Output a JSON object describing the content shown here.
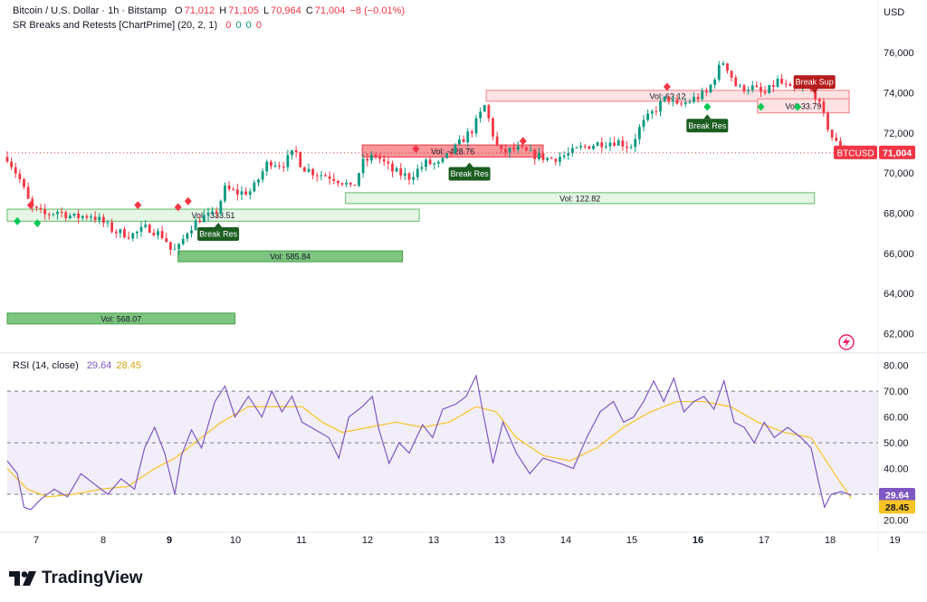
{
  "legend": {
    "title": "Bitcoin / U.S. Dollar · 1h · Bitstamp",
    "o_label": "O",
    "o": "71,012",
    "h_label": "H",
    "h": "71,105",
    "l_label": "L",
    "l": "70,964",
    "c_label": "C",
    "c": "71,004",
    "change": "−8 (−0.01%)",
    "indicator": "SR Breaks and Retests [ChartPrime] (20, 2, 1)",
    "indicator_values": [
      "0",
      "0",
      "0",
      "0"
    ]
  },
  "currency": "USD",
  "rsi_legend": {
    "label": "RSI (14, close)",
    "rsi": "29.64",
    "ma": "28.45"
  },
  "price_tag": {
    "symbol": "BTCUSD",
    "price": "71,004"
  },
  "brand": "TradingView",
  "colors": {
    "up": "#089981",
    "down": "#f23645",
    "rsi": "#7e57c2",
    "rsi_ma": "#f7c325",
    "support": "#4caf50",
    "resistance": "#f23645"
  },
  "chart_data": [
    {
      "type": "candlestick",
      "title": "Bitcoin / U.S. Dollar · 1h · Bitstamp",
      "x_ticks": [
        "7",
        "8",
        "9",
        "10",
        "11",
        "12",
        "13",
        "13",
        "14",
        "15",
        "16",
        "17",
        "18",
        "19"
      ],
      "x_tick_bold": [
        "9",
        "16"
      ],
      "x_range": [
        6.6,
        19.6
      ],
      "ylim": [
        61300,
        77000
      ],
      "y_ticks": [
        "62,000",
        "64,000",
        "66,000",
        "68,000",
        "70,000",
        "72,000",
        "74,000",
        "76,000"
      ],
      "close_path": [
        [
          6.6,
          70800
        ],
        [
          6.8,
          69600
        ],
        [
          6.95,
          68300
        ],
        [
          7.15,
          67900
        ],
        [
          7.35,
          68100
        ],
        [
          7.6,
          67800
        ],
        [
          7.85,
          67900
        ],
        [
          8.0,
          67600
        ],
        [
          8.2,
          67100
        ],
        [
          8.45,
          66900
        ],
        [
          8.7,
          67300
        ],
        [
          8.95,
          66800
        ],
        [
          9.05,
          66100
        ],
        [
          9.15,
          66200
        ],
        [
          9.3,
          67200
        ],
        [
          9.5,
          67800
        ],
        [
          9.7,
          67900
        ],
        [
          9.85,
          69200
        ],
        [
          10.05,
          69000
        ],
        [
          10.25,
          69100
        ],
        [
          10.5,
          70600
        ],
        [
          10.7,
          70400
        ],
        [
          10.9,
          71100
        ],
        [
          11.0,
          70300
        ],
        [
          11.2,
          70000
        ],
        [
          11.45,
          69800
        ],
        [
          11.65,
          69500
        ],
        [
          11.75,
          69100
        ],
        [
          11.9,
          70500
        ],
        [
          12.1,
          70900
        ],
        [
          12.35,
          70100
        ],
        [
          12.6,
          69800
        ],
        [
          12.85,
          70500
        ],
        [
          13.05,
          70400
        ],
        [
          13.3,
          71300
        ],
        [
          13.55,
          72200
        ],
        [
          13.75,
          73500
        ],
        [
          13.8,
          72400
        ],
        [
          13.95,
          71000
        ],
        [
          14.2,
          71200
        ],
        [
          14.45,
          70900
        ],
        [
          14.7,
          70700
        ],
        [
          14.95,
          70900
        ],
        [
          15.2,
          71300
        ],
        [
          15.45,
          71500
        ],
        [
          15.7,
          71600
        ],
        [
          15.9,
          71300
        ],
        [
          16.05,
          72300
        ],
        [
          16.2,
          72900
        ],
        [
          16.45,
          73800
        ],
        [
          16.6,
          73300
        ],
        [
          16.85,
          73700
        ],
        [
          17.05,
          74000
        ],
        [
          17.2,
          75100
        ],
        [
          17.3,
          75600
        ],
        [
          17.5,
          74200
        ],
        [
          17.7,
          74300
        ],
        [
          17.9,
          73900
        ],
        [
          18.1,
          74600
        ],
        [
          18.3,
          74100
        ],
        [
          18.5,
          74300
        ],
        [
          18.65,
          74000
        ],
        [
          18.8,
          72700
        ],
        [
          18.95,
          71500
        ],
        [
          19.05,
          71400
        ],
        [
          19.1,
          71004
        ]
      ],
      "indicator_boxes": [
        {
          "kind": "support",
          "x": [
            6.6,
            10.0
          ],
          "y": [
            62600,
            62900
          ],
          "label": "Vol: 568.07"
        },
        {
          "kind": "support",
          "x": [
            9.15,
            12.5
          ],
          "y": [
            65700,
            66000
          ],
          "label": "Vol: 585.84"
        },
        {
          "kind": "support-light",
          "x": [
            6.6,
            12.75
          ],
          "y": [
            67600,
            68200
          ],
          "label": "Vol: -333.51"
        },
        {
          "kind": "support-light",
          "x": [
            11.65,
            18.65
          ],
          "y": [
            68500,
            69000
          ],
          "label": "Vol: 122.82"
        },
        {
          "kind": "resistance",
          "x": [
            11.9,
            14.6
          ],
          "y": [
            70800,
            71400
          ],
          "label": "Vol: -428.76"
        },
        {
          "kind": "resistance-light",
          "x": [
            13.75,
            19.9
          ],
          "y": [
            73700,
            74000
          ],
          "label": "Vol: 63.12"
        },
        {
          "kind": "resistance-light",
          "x": [
            17.8,
            19.9
          ],
          "y": [
            73000,
            73700
          ],
          "label": "Vol: 33.79"
        }
      ],
      "signal_labels": [
        {
          "text": "Break Res",
          "x": 9.75,
          "y": 67300
        },
        {
          "text": "Break Res",
          "x": 13.5,
          "y": 70300
        },
        {
          "text": "Break Res",
          "x": 17.05,
          "y": 72700
        },
        {
          "text": "Break Sup",
          "x": 18.65,
          "y": 74200
        }
      ],
      "retest_markers_up": [
        [
          6.95,
          68400
        ],
        [
          8.55,
          68400
        ],
        [
          9.15,
          68300
        ],
        [
          9.3,
          68600
        ],
        [
          12.7,
          71200
        ],
        [
          14.3,
          71600
        ],
        [
          16.45,
          74300
        ],
        [
          18.65,
          74600
        ]
      ],
      "retest_markers_down": [
        [
          6.75,
          67600
        ],
        [
          7.05,
          67500
        ],
        [
          13.5,
          70300
        ],
        [
          17.05,
          73300
        ],
        [
          17.85,
          73300
        ],
        [
          18.4,
          73300
        ]
      ]
    },
    {
      "type": "line",
      "title": "RSI (14, close)",
      "ylim": [
        17,
        82
      ],
      "y_ticks": [
        "20.00",
        "30.00",
        "40.00",
        "50.00",
        "60.00",
        "70.00",
        "80.00"
      ],
      "band": [
        30,
        70
      ],
      "midline": 50,
      "series": [
        {
          "name": "RSI",
          "points": [
            [
              6.6,
              43
            ],
            [
              6.75,
              38
            ],
            [
              6.85,
              25
            ],
            [
              6.95,
              24
            ],
            [
              7.1,
              28
            ],
            [
              7.3,
              32
            ],
            [
              7.5,
              29
            ],
            [
              7.7,
              38
            ],
            [
              7.9,
              34
            ],
            [
              8.1,
              30
            ],
            [
              8.3,
              36
            ],
            [
              8.5,
              32
            ],
            [
              8.65,
              48
            ],
            [
              8.8,
              56
            ],
            [
              8.95,
              46
            ],
            [
              9.1,
              30
            ],
            [
              9.2,
              45
            ],
            [
              9.35,
              55
            ],
            [
              9.5,
              48
            ],
            [
              9.7,
              66
            ],
            [
              9.85,
              72
            ],
            [
              10.0,
              60
            ],
            [
              10.2,
              68
            ],
            [
              10.4,
              60
            ],
            [
              10.55,
              70
            ],
            [
              10.7,
              62
            ],
            [
              10.85,
              68
            ],
            [
              11.0,
              58
            ],
            [
              11.2,
              55
            ],
            [
              11.4,
              52
            ],
            [
              11.55,
              44
            ],
            [
              11.7,
              60
            ],
            [
              11.9,
              64
            ],
            [
              12.05,
              68
            ],
            [
              12.15,
              55
            ],
            [
              12.3,
              42
            ],
            [
              12.45,
              50
            ],
            [
              12.6,
              46
            ],
            [
              12.8,
              57
            ],
            [
              12.95,
              52
            ],
            [
              13.1,
              63
            ],
            [
              13.3,
              65
            ],
            [
              13.45,
              68
            ],
            [
              13.6,
              76
            ],
            [
              13.7,
              62
            ],
            [
              13.85,
              42
            ],
            [
              14.0,
              58
            ],
            [
              14.2,
              46
            ],
            [
              14.4,
              38
            ],
            [
              14.6,
              44
            ],
            [
              14.85,
              42
            ],
            [
              15.05,
              40
            ],
            [
              15.25,
              52
            ],
            [
              15.45,
              62
            ],
            [
              15.65,
              66
            ],
            [
              15.8,
              58
            ],
            [
              15.95,
              60
            ],
            [
              16.1,
              66
            ],
            [
              16.25,
              74
            ],
            [
              16.4,
              66
            ],
            [
              16.55,
              75
            ],
            [
              16.7,
              62
            ],
            [
              16.85,
              66
            ],
            [
              17.0,
              68
            ],
            [
              17.15,
              63
            ],
            [
              17.3,
              74
            ],
            [
              17.45,
              58
            ],
            [
              17.6,
              56
            ],
            [
              17.75,
              50
            ],
            [
              17.9,
              58
            ],
            [
              18.05,
              52
            ],
            [
              18.25,
              56
            ],
            [
              18.45,
              52
            ],
            [
              18.6,
              48
            ],
            [
              18.7,
              36
            ],
            [
              18.8,
              25
            ],
            [
              18.9,
              30
            ],
            [
              19.05,
              31
            ],
            [
              19.2,
              29.64
            ]
          ]
        },
        {
          "name": "RSI-based MA",
          "points": [
            [
              6.6,
              40
            ],
            [
              6.9,
              32
            ],
            [
              7.2,
              29
            ],
            [
              7.6,
              30
            ],
            [
              8.0,
              32
            ],
            [
              8.4,
              33
            ],
            [
              8.8,
              40
            ],
            [
              9.1,
              44
            ],
            [
              9.4,
              50
            ],
            [
              9.8,
              58
            ],
            [
              10.2,
              64
            ],
            [
              10.6,
              64
            ],
            [
              11.0,
              64
            ],
            [
              11.3,
              58
            ],
            [
              11.6,
              54
            ],
            [
              12.0,
              56
            ],
            [
              12.4,
              58
            ],
            [
              12.8,
              56
            ],
            [
              13.2,
              58
            ],
            [
              13.6,
              64
            ],
            [
              13.9,
              62
            ],
            [
              14.2,
              52
            ],
            [
              14.6,
              45
            ],
            [
              15.0,
              43
            ],
            [
              15.4,
              48
            ],
            [
              15.8,
              56
            ],
            [
              16.2,
              62
            ],
            [
              16.6,
              66
            ],
            [
              17.0,
              66
            ],
            [
              17.4,
              64
            ],
            [
              17.8,
              58
            ],
            [
              18.2,
              54
            ],
            [
              18.6,
              52
            ],
            [
              18.8,
              44
            ],
            [
              19.0,
              36
            ],
            [
              19.2,
              28.45
            ]
          ]
        }
      ]
    }
  ]
}
